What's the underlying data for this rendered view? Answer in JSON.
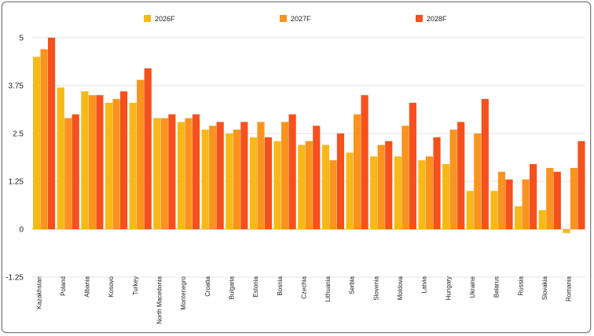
{
  "chart_data": {
    "type": "bar",
    "title": "",
    "xlabel": "",
    "ylabel": "",
    "ylim": [
      -1.25,
      5
    ],
    "yticks": [
      -1.25,
      0,
      1.25,
      2.5,
      3.75,
      5
    ],
    "ytick_labels": [
      "-1.25",
      "0",
      "1.25",
      "2.5",
      "3.75",
      "5"
    ],
    "grid": "horizontal",
    "legend_position": "top",
    "categories": [
      "Kazakhstan",
      "Poland",
      "Albania",
      "Kosovo",
      "Turkey",
      "North Macedonia",
      "Montenegro",
      "Croatia",
      "Bulgaria",
      "Estonia",
      "Bosnia",
      "Czechia",
      "Lithuania",
      "Serbia",
      "Slovenia",
      "Moldova",
      "Latvia",
      "Hungary",
      "Ukraine",
      "Belarus",
      "Russia",
      "Slovakia",
      "Romania"
    ],
    "series": [
      {
        "name": "2026F",
        "color": "#f7b819",
        "values": [
          4.5,
          3.7,
          3.6,
          3.3,
          3.3,
          2.9,
          2.8,
          2.6,
          2.5,
          2.4,
          2.3,
          2.2,
          2.2,
          2.0,
          1.9,
          1.9,
          1.8,
          1.7,
          1.0,
          1.0,
          0.6,
          0.5,
          -0.1
        ]
      },
      {
        "name": "2027F",
        "color": "#fa9320",
        "values": [
          4.7,
          2.9,
          3.5,
          3.4,
          3.9,
          2.9,
          2.9,
          2.7,
          2.6,
          2.8,
          2.8,
          2.3,
          1.8,
          3.0,
          2.2,
          2.7,
          1.9,
          2.6,
          2.5,
          1.5,
          1.3,
          1.6,
          1.6
        ]
      },
      {
        "name": "2028F",
        "color": "#f4511e",
        "values": [
          5.0,
          3.0,
          3.5,
          3.6,
          4.2,
          3.0,
          3.0,
          2.8,
          2.8,
          2.4,
          3.0,
          2.7,
          2.5,
          3.5,
          2.3,
          3.3,
          2.4,
          2.8,
          3.4,
          1.3,
          1.7,
          1.5,
          2.3
        ]
      }
    ]
  }
}
